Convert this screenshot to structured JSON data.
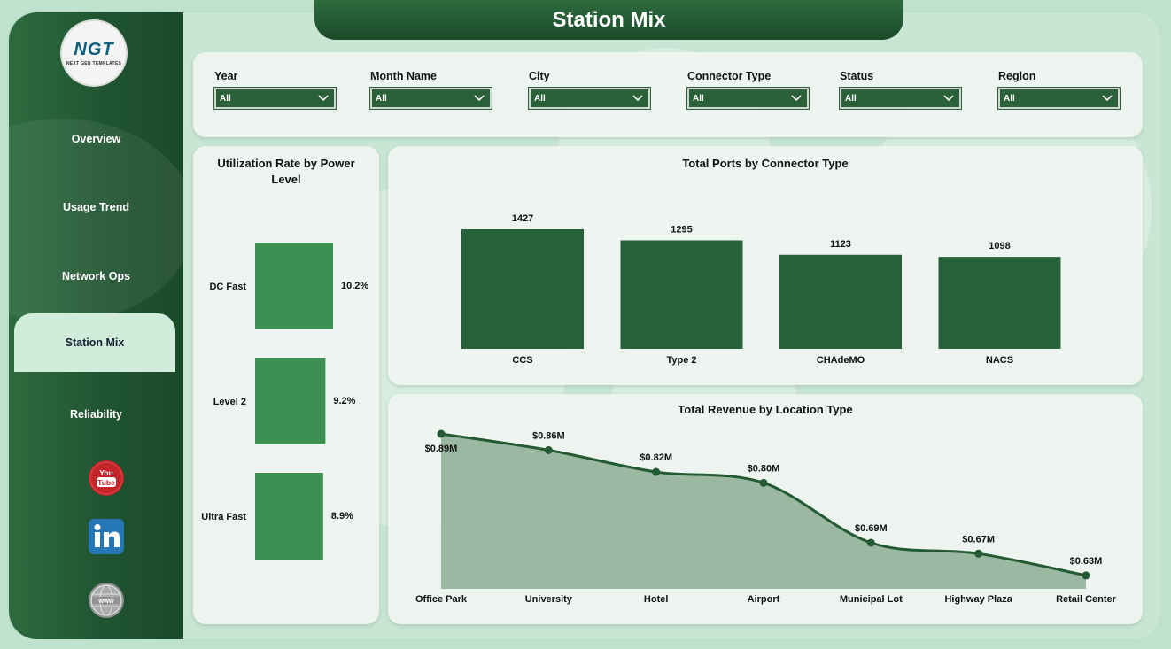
{
  "header": {
    "title": "Station Mix"
  },
  "logo": {
    "mark": "NGT",
    "subtitle": "NEXT GEN TEMPLATES"
  },
  "sidebar": {
    "items": [
      {
        "label": "Overview",
        "active": false
      },
      {
        "label": "Usage Trend",
        "active": false
      },
      {
        "label": "Network Ops",
        "active": false
      },
      {
        "label": "Station Mix",
        "active": true
      },
      {
        "label": "Reliability",
        "active": false
      }
    ],
    "social": [
      {
        "icon": "youtube-icon",
        "text": "You Tube"
      },
      {
        "icon": "linkedin-icon",
        "text": "in"
      },
      {
        "icon": "globe-icon",
        "text": "www"
      }
    ]
  },
  "filters": [
    {
      "label": "Year",
      "value": "All"
    },
    {
      "label": "Month Name",
      "value": "All"
    },
    {
      "label": "City",
      "value": "All"
    },
    {
      "label": "Connector Type",
      "value": "All"
    },
    {
      "label": "Status",
      "value": "All"
    },
    {
      "label": "Region",
      "value": "All"
    }
  ],
  "colors": {
    "accent": "#2a6138",
    "bar_dark": "#27613a",
    "bar_light": "#3a9152",
    "area_fill": "#9ab8a2",
    "line": "#245a33"
  },
  "chart_data": [
    {
      "type": "bar",
      "orientation": "horizontal",
      "title": "Utilization Rate by Power Level",
      "categories": [
        "DC Fast",
        "Level 2",
        "Ultra Fast"
      ],
      "values": [
        10.2,
        9.2,
        8.9
      ],
      "data_labels": [
        "10.2%",
        "9.2%",
        "8.9%"
      ]
    },
    {
      "type": "bar",
      "title": "Total Ports by Connector Type",
      "categories": [
        "CCS",
        "Type 2",
        "CHAdeMO",
        "NACS"
      ],
      "values": [
        1427,
        1295,
        1123,
        1098
      ],
      "data_labels": [
        "1427",
        "1295",
        "1123",
        "1098"
      ]
    },
    {
      "type": "area",
      "title": "Total Revenue by Location Type",
      "categories": [
        "Office Park",
        "University",
        "Hotel",
        "Airport",
        "Municipal Lot",
        "Highway Plaza",
        "Retail Center"
      ],
      "values": [
        0.89,
        0.86,
        0.82,
        0.8,
        0.69,
        0.67,
        0.63
      ],
      "data_labels": [
        "$0.89M",
        "$0.86M",
        "$0.82M",
        "$0.80M",
        "$0.69M",
        "$0.67M",
        "$0.63M"
      ]
    }
  ]
}
